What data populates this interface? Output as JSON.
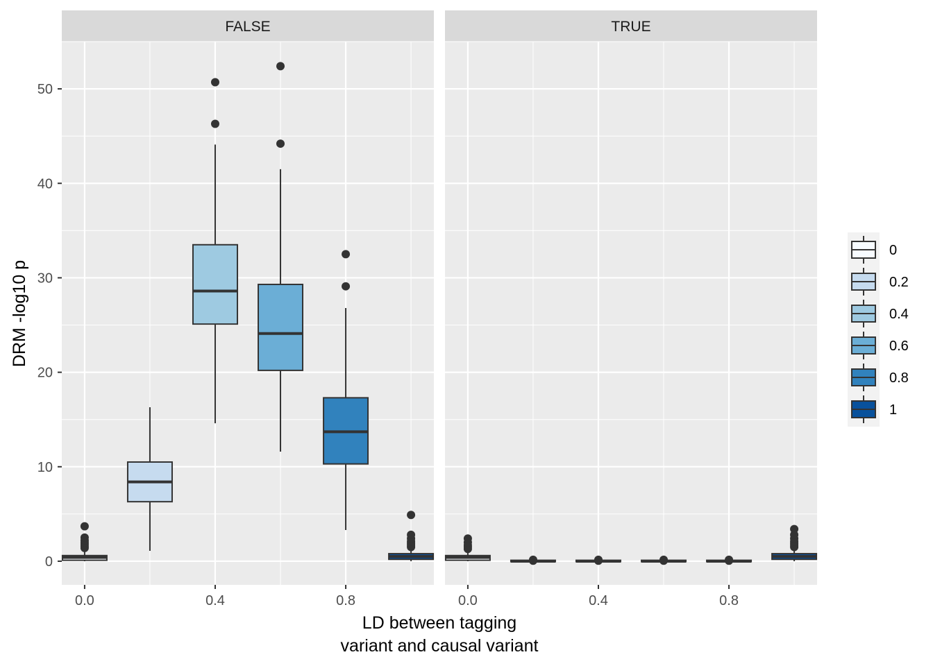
{
  "chart_data": {
    "type": "boxplot",
    "xlabel_lines": [
      "LD between tagging",
      "variant and causal variant"
    ],
    "ylabel": "DRM -log10 p",
    "ylim": [
      -2.5,
      55
    ],
    "xlim": [
      -0.07,
      1.07
    ],
    "y_ticks": [
      0,
      10,
      20,
      30,
      40,
      50
    ],
    "y_tick_labels": [
      "0",
      "10",
      "20",
      "30",
      "40",
      "50"
    ],
    "x_ticks": [
      0.0,
      0.4,
      0.8
    ],
    "x_tick_labels": [
      "0.0",
      "0.4",
      "0.8"
    ],
    "x_minor": [
      0.2,
      0.6,
      1.0
    ],
    "grid": true,
    "legend": {
      "position": "right",
      "entries": [
        {
          "label": "0",
          "color": "#F7FBFF"
        },
        {
          "label": "0.2",
          "color": "#C6DBEF"
        },
        {
          "label": "0.4",
          "color": "#9ECAE1"
        },
        {
          "label": "0.6",
          "color": "#6BAED6"
        },
        {
          "label": "0.8",
          "color": "#3182BD"
        },
        {
          "label": "1",
          "color": "#08519C"
        }
      ]
    },
    "panels": [
      {
        "strip": "FALSE",
        "boxes": [
          {
            "x": 0.0,
            "fill": "#F7FBFF",
            "min": 0.0,
            "q1": 0.1,
            "median": 0.4,
            "q3": 0.6,
            "max": 1.2,
            "outliers": [
              1.4,
              1.6,
              1.8,
              2.0,
              2.2,
              2.5,
              3.7
            ]
          },
          {
            "x": 0.2,
            "fill": "#C6DBEF",
            "min": 1.1,
            "q1": 6.3,
            "median": 8.4,
            "q3": 10.5,
            "max": 16.3,
            "outliers": []
          },
          {
            "x": 0.4,
            "fill": "#9ECAE1",
            "min": 14.6,
            "q1": 25.1,
            "median": 28.6,
            "q3": 33.5,
            "max": 44.1,
            "outliers": [
              46.3,
              50.7
            ]
          },
          {
            "x": 0.6,
            "fill": "#6BAED6",
            "min": 11.6,
            "q1": 20.2,
            "median": 24.1,
            "q3": 29.3,
            "max": 41.5,
            "outliers": [
              44.2,
              52.4
            ]
          },
          {
            "x": 0.8,
            "fill": "#3182BD",
            "min": 3.3,
            "q1": 10.3,
            "median": 13.7,
            "q3": 17.3,
            "max": 26.8,
            "outliers": [
              29.1,
              32.5
            ]
          },
          {
            "x": 1.0,
            "fill": "#08519C",
            "min": 0.0,
            "q1": 0.2,
            "median": 0.5,
            "q3": 0.8,
            "max": 1.3,
            "outliers": [
              1.5,
              1.7,
              1.9,
              2.1,
              2.4,
              2.8,
              4.9
            ]
          }
        ]
      },
      {
        "strip": "TRUE",
        "boxes": [
          {
            "x": 0.0,
            "fill": "#F7FBFF",
            "min": 0.0,
            "q1": 0.1,
            "median": 0.4,
            "q3": 0.6,
            "max": 1.1,
            "outliers": [
              1.3,
              1.5,
              1.7,
              2.0,
              2.4
            ]
          },
          {
            "x": 0.2,
            "fill": "#C6DBEF",
            "min": 0.0,
            "q1": 0.0,
            "median": 0.0,
            "q3": 0.1,
            "max": 0.1,
            "outliers": [
              0.05,
              0.1,
              0.15
            ]
          },
          {
            "x": 0.4,
            "fill": "#9ECAE1",
            "min": 0.0,
            "q1": 0.0,
            "median": 0.0,
            "q3": 0.1,
            "max": 0.1,
            "outliers": [
              0.05,
              0.1,
              0.15
            ]
          },
          {
            "x": 0.6,
            "fill": "#6BAED6",
            "min": 0.0,
            "q1": 0.0,
            "median": 0.0,
            "q3": 0.1,
            "max": 0.1,
            "outliers": [
              0.05,
              0.1,
              0.15
            ]
          },
          {
            "x": 0.8,
            "fill": "#3182BD",
            "min": 0.0,
            "q1": 0.0,
            "median": 0.0,
            "q3": 0.1,
            "max": 0.1,
            "outliers": [
              0.05,
              0.1,
              0.15
            ]
          },
          {
            "x": 1.0,
            "fill": "#08519C",
            "min": 0.0,
            "q1": 0.2,
            "median": 0.5,
            "q3": 0.8,
            "max": 1.3,
            "outliers": [
              1.5,
              1.7,
              1.9,
              2.1,
              2.4,
              2.8,
              3.4
            ]
          }
        ]
      }
    ]
  }
}
